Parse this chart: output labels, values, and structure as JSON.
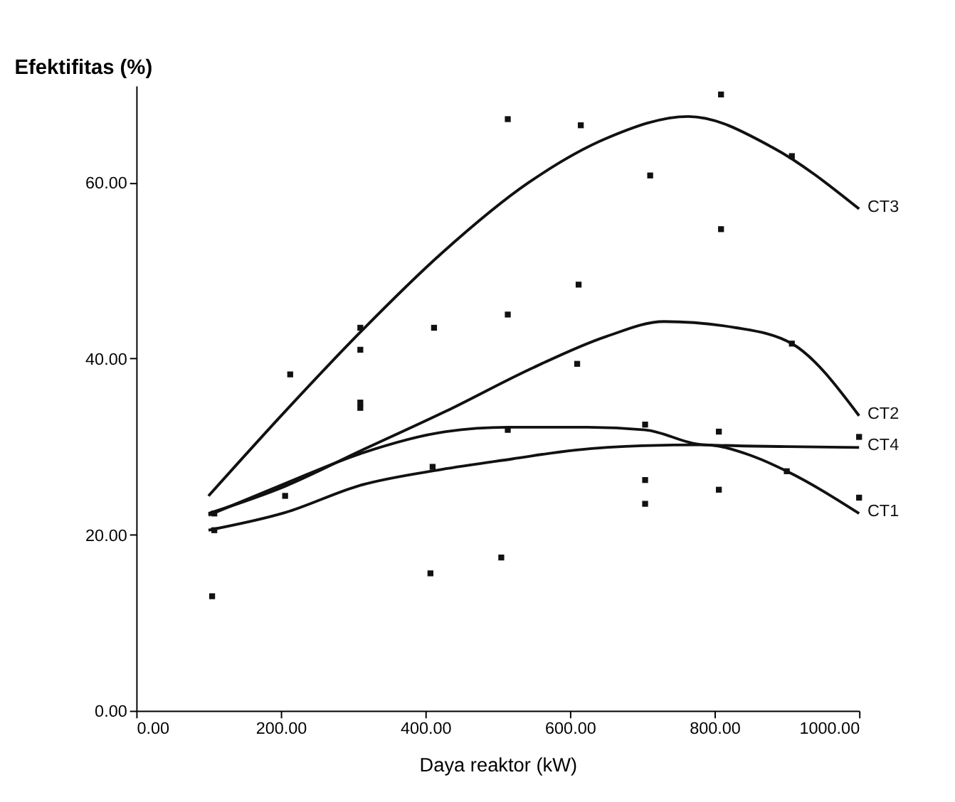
{
  "chart_data": {
    "type": "line",
    "xlabel": "Daya reaktor (kW)",
    "ylabel": "Efektifitas (%)",
    "xlim": [
      0,
      1000
    ],
    "ylim": [
      0,
      71
    ],
    "xticks": [
      {
        "value": 0,
        "label": "0.00"
      },
      {
        "value": 200,
        "label": "200.00"
      },
      {
        "value": 400,
        "label": "400.00"
      },
      {
        "value": 600,
        "label": "600.00"
      },
      {
        "value": 800,
        "label": "800.00"
      },
      {
        "value": 1000,
        "label": "1000.00"
      }
    ],
    "yticks": [
      {
        "value": 0,
        "label": "0.00"
      },
      {
        "value": 20,
        "label": "20.00"
      },
      {
        "value": 40,
        "label": "40.00"
      },
      {
        "value": 60,
        "label": "60.00"
      }
    ],
    "grid": false,
    "legend": false,
    "marker": "none",
    "line_style": "solid",
    "series": [
      {
        "name": "CT3",
        "color": "#111111",
        "x": [
          100,
          206,
          310,
          423,
          543,
          650,
          764,
          880,
          1000
        ],
        "values": [
          24.4,
          34,
          43,
          52,
          60,
          65,
          67.5,
          64,
          57
        ]
      },
      {
        "name": "CT2",
        "color": "#111111",
        "x": [
          100,
          206,
          310,
          428,
          550,
          650,
          730,
          830,
          907,
          1000
        ],
        "values": [
          22.4,
          25.5,
          29.5,
          34,
          39,
          42.5,
          44.2,
          43.5,
          41.7,
          33.5
        ]
      },
      {
        "name": "CT4",
        "color": "#111111",
        "x": [
          100,
          206,
          310,
          428,
          514,
          625,
          704,
          785,
          900,
          1000
        ],
        "values": [
          22.2,
          25.8,
          29.2,
          31.7,
          32.2,
          32.2,
          31.9,
          30.2,
          30,
          29.9
        ]
      },
      {
        "name": "CT1",
        "color": "#111111",
        "x": [
          100,
          206,
          310,
          422,
          520,
          607,
          700,
          785,
          850,
          900,
          1000
        ],
        "values": [
          20.5,
          22.5,
          25.6,
          27.4,
          28.6,
          29.6,
          30.1,
          30.2,
          29,
          27.2,
          22.4
        ]
      },
      {
        "type": "scatter",
        "marker": "square",
        "color": "#111111",
        "x": [
          105,
          108,
          108,
          213,
          206,
          310,
          310,
          310,
          310,
          412,
          407,
          410,
          514,
          615,
          809,
          711,
          809,
          907,
          612,
          514,
          610,
          907,
          514,
          704,
          806,
          1000,
          704,
          704,
          806,
          900,
          1000,
          505
        ],
        "values": [
          13,
          22.4,
          20.5,
          38.2,
          24.4,
          41,
          43.5,
          35,
          34.4,
          43.5,
          15.6,
          27.7,
          67.2,
          66.5,
          70,
          60.8,
          54.7,
          63,
          48.4,
          45,
          39.4,
          41.7,
          31.9,
          32.5,
          31.7,
          31.1,
          26.2,
          23.5,
          25.1,
          27.2,
          24.2,
          17.4
        ]
      }
    ]
  }
}
